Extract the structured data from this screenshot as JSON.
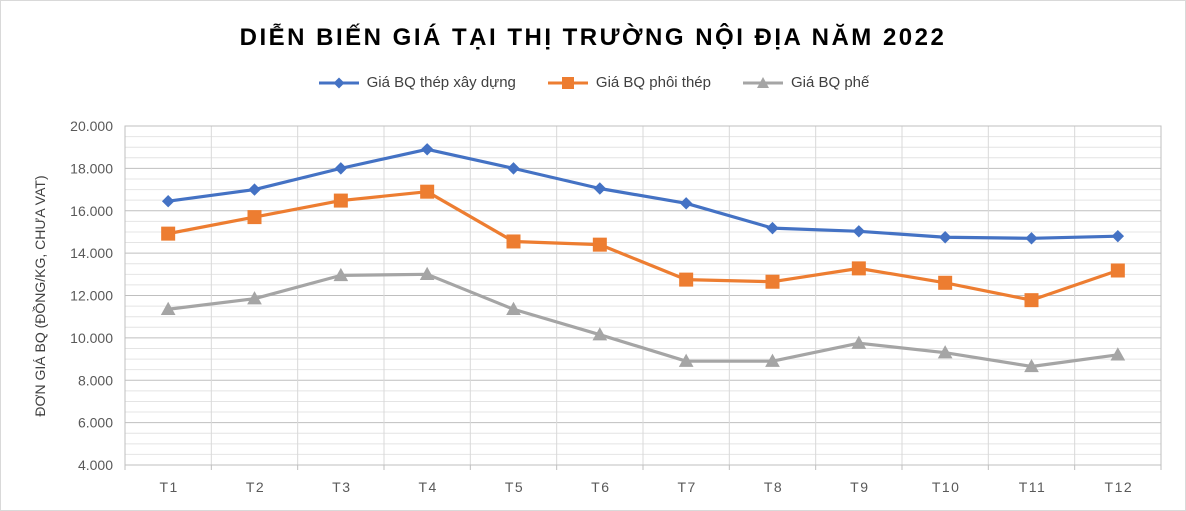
{
  "chart_data": {
    "type": "line",
    "title": "DIỄN BIẾN GIÁ TẠI THỊ TRƯỜNG NỘI ĐỊA NĂM 2022",
    "ylabel": "ĐƠN GIÁ BQ (ĐỒNG/KG, CHƯA VAT)",
    "xlabel": "",
    "categories": [
      "T1",
      "T2",
      "T3",
      "T4",
      "T5",
      "T6",
      "T7",
      "T8",
      "T9",
      "T10",
      "T11",
      "T12"
    ],
    "ylim": [
      4000,
      20000
    ],
    "yticks": [
      4000,
      6000,
      8000,
      10000,
      12000,
      14000,
      16000,
      18000,
      20000
    ],
    "ytick_labels": [
      "4.000",
      "6.000",
      "8.000",
      "10.000",
      "12.000",
      "14.000",
      "16.000",
      "18.000",
      "20.000"
    ],
    "grid": true,
    "legend_position": "top",
    "series": [
      {
        "name": "Giá BQ thép xây dựng",
        "color": "#4472c4",
        "marker": "diamond",
        "values": [
          16450,
          17000,
          18000,
          18900,
          18000,
          17050,
          16350,
          15180,
          15030,
          14750,
          14700,
          14800
        ]
      },
      {
        "name": "Giá BQ phôi thép",
        "color": "#ed7d31",
        "marker": "square",
        "values": [
          14920,
          15700,
          16480,
          16900,
          14550,
          14400,
          12750,
          12650,
          13280,
          12600,
          11780,
          13180
        ]
      },
      {
        "name": "Giá BQ phế",
        "color": "#a5a5a5",
        "marker": "triangle",
        "values": [
          11350,
          11850,
          12950,
          13000,
          11350,
          10150,
          8900,
          8900,
          9750,
          9300,
          8650,
          9200
        ]
      }
    ]
  }
}
